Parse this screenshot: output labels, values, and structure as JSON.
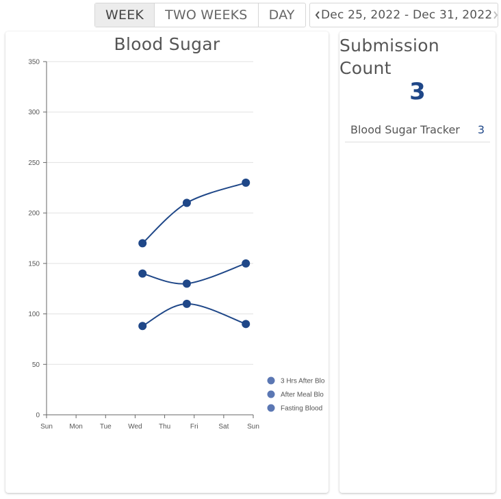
{
  "range_tabs": [
    {
      "label": "WEEK",
      "active": true
    },
    {
      "label": "TWO WEEKS",
      "active": false
    },
    {
      "label": "DAY",
      "active": false
    }
  ],
  "date_nav": {
    "label": "Dec 25, 2022 - Dec 31, 2022",
    "prev_icon": "chevron-left-icon",
    "next_icon": "chevron-right-icon"
  },
  "colors": {
    "series": "#1f4788",
    "legend_dot": "#5b77b3",
    "grid": "#e0e0e0",
    "total": "#1f4788"
  },
  "chart_data": {
    "type": "line",
    "title": "Blood Sugar",
    "categories": [
      "Sun",
      "Mon",
      "Tue",
      "Wed",
      "Thu",
      "Fri",
      "Sat",
      "Sun"
    ],
    "ylim": [
      0,
      350
    ],
    "yticks": [
      0,
      50,
      100,
      150,
      200,
      250,
      300,
      350
    ],
    "grid": true,
    "legend_position": "right",
    "series": [
      {
        "name": "3 Hrs After Blo",
        "x": [
          3.25,
          4.75,
          6.75
        ],
        "values": [
          170,
          210,
          230
        ]
      },
      {
        "name": "After Meal Blo",
        "x": [
          3.25,
          4.75,
          6.75
        ],
        "values": [
          140,
          130,
          150
        ]
      },
      {
        "name": "Fasting Blood",
        "x": [
          3.25,
          4.75,
          6.75
        ],
        "values": [
          88,
          110,
          90
        ]
      }
    ]
  },
  "submission": {
    "title": "Submission Count",
    "total": "3",
    "rows": [
      {
        "label": "Blood Sugar Tracker",
        "value": "3"
      }
    ]
  }
}
